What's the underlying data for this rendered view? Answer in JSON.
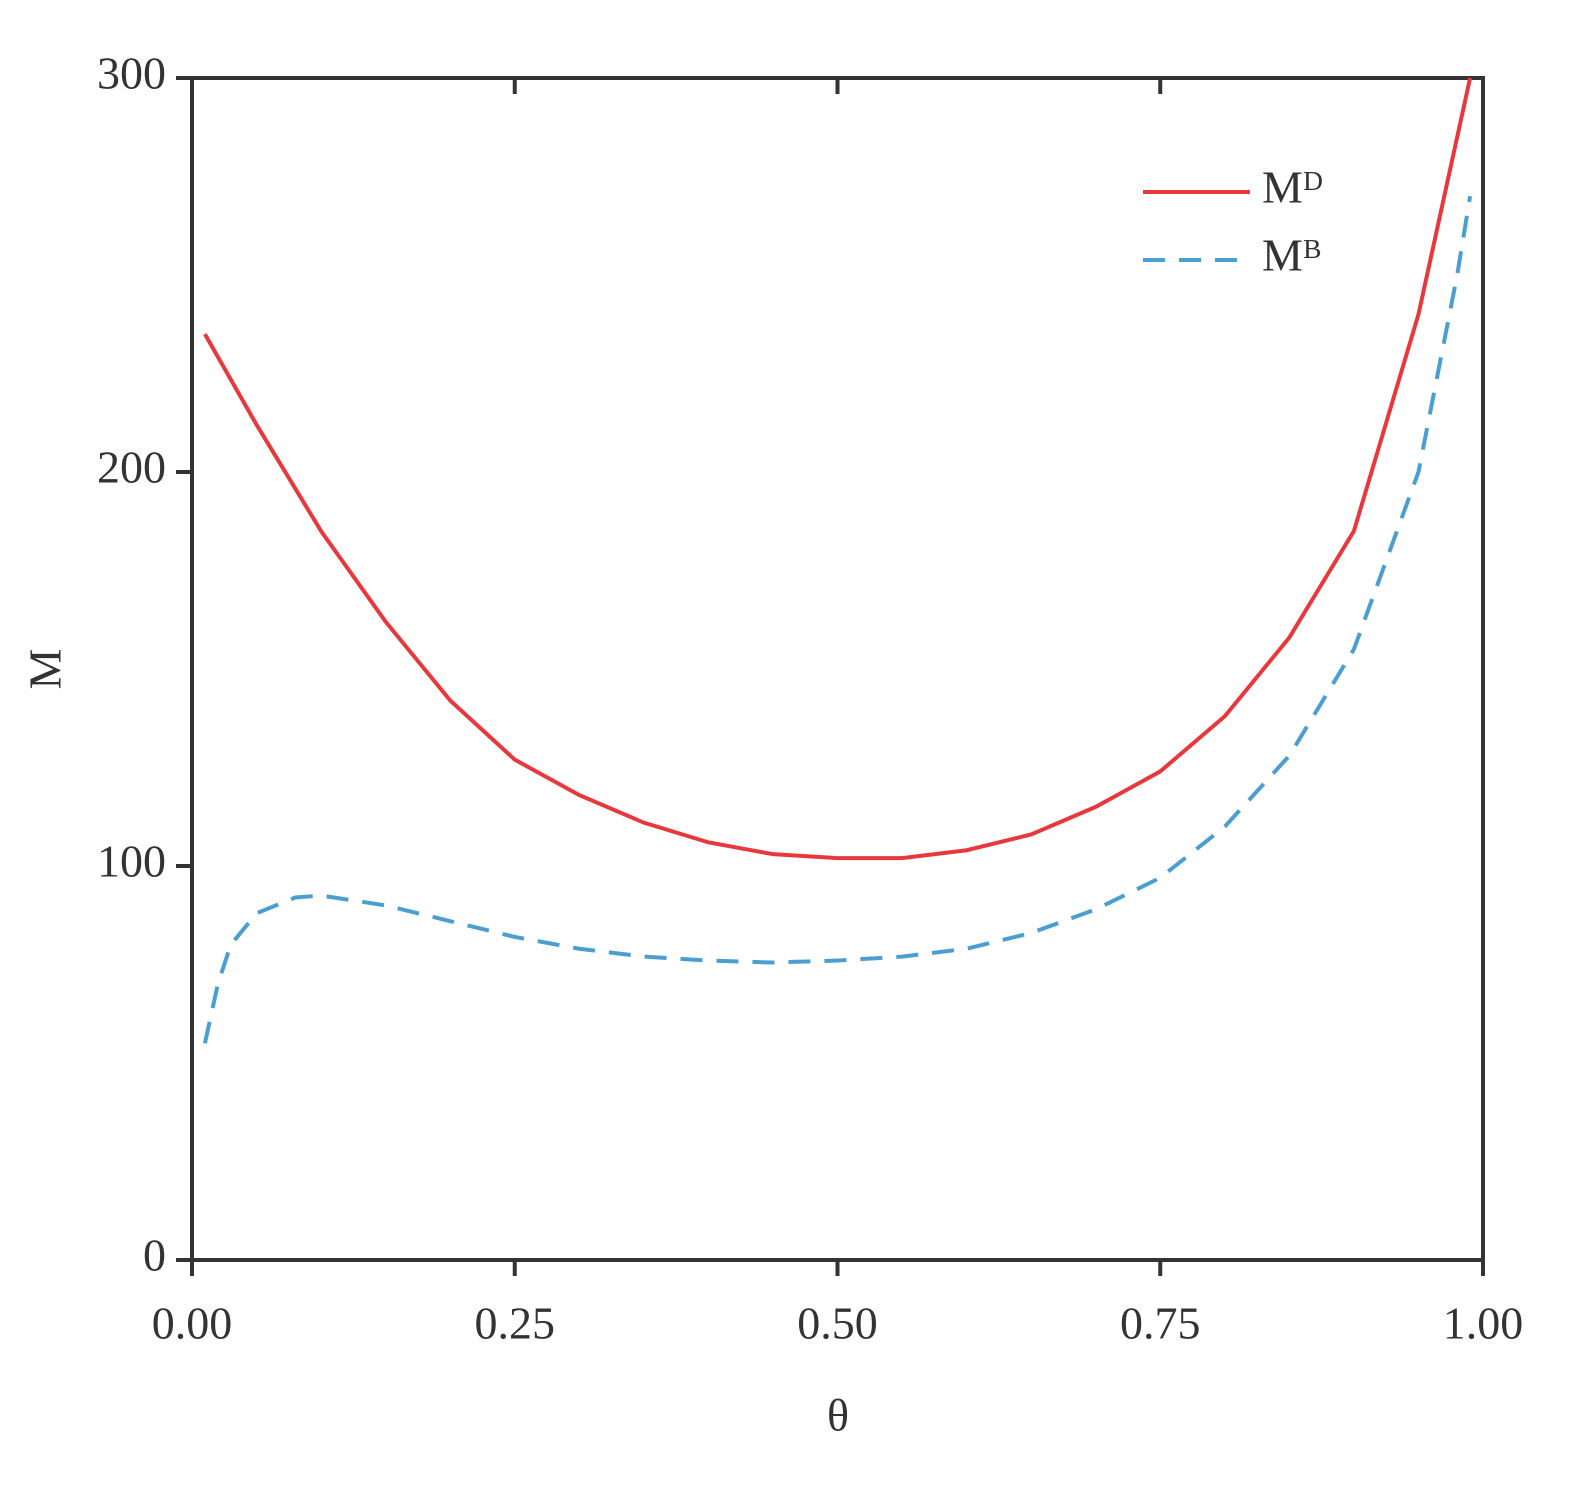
{
  "chart_data": {
    "type": "line",
    "xlabel": "θ",
    "ylabel": "M",
    "xlim": [
      0,
      1
    ],
    "ylim": [
      0,
      300
    ],
    "xticks": [
      {
        "value": 0,
        "label": "0.00"
      },
      {
        "value": 0.25,
        "label": "0.25"
      },
      {
        "value": 0.5,
        "label": "0.50"
      },
      {
        "value": 0.75,
        "label": "0.75"
      },
      {
        "value": 1,
        "label": "1.00"
      }
    ],
    "yticks": [
      0,
      100,
      200,
      300
    ],
    "legend": "upper right",
    "series": [
      {
        "name": "Mᴰ",
        "color": "#e8383d",
        "dash": false,
        "x": [
          0.01,
          0.05,
          0.1,
          0.15,
          0.2,
          0.25,
          0.3,
          0.35,
          0.4,
          0.45,
          0.5,
          0.55,
          0.6,
          0.65,
          0.7,
          0.75,
          0.8,
          0.85,
          0.9,
          0.95,
          0.99
        ],
        "values": [
          235,
          212,
          185,
          162,
          142,
          127,
          118,
          111,
          106,
          103,
          102,
          102,
          104,
          108,
          115,
          124,
          138,
          158,
          185,
          240,
          300
        ]
      },
      {
        "name": "Mᴮ",
        "color": "#4a9fd0",
        "dash": true,
        "x": [
          0.01,
          0.02,
          0.03,
          0.05,
          0.08,
          0.1,
          0.15,
          0.2,
          0.25,
          0.3,
          0.35,
          0.4,
          0.45,
          0.5,
          0.55,
          0.6,
          0.65,
          0.7,
          0.75,
          0.8,
          0.85,
          0.9,
          0.95,
          0.98,
          0.99
        ],
        "values": [
          55,
          70,
          80,
          88,
          92,
          92.5,
          90,
          86,
          82,
          79,
          77,
          76,
          75.5,
          76,
          77,
          79,
          83,
          89,
          97,
          110,
          128,
          155,
          200,
          250,
          270
        ]
      }
    ]
  }
}
